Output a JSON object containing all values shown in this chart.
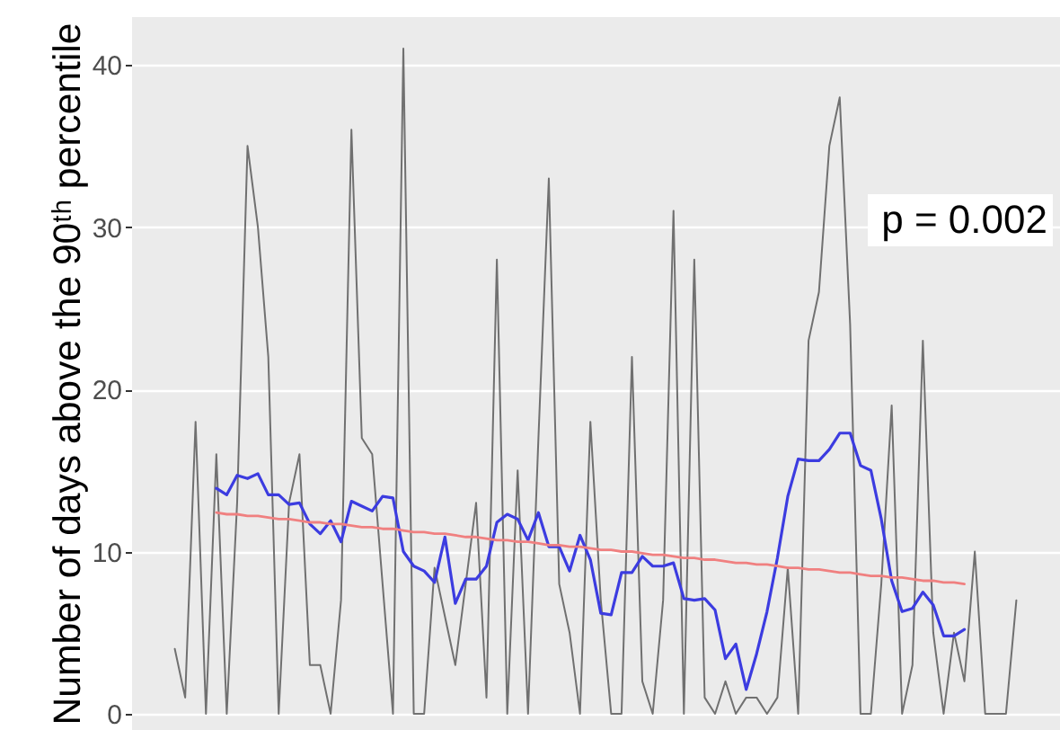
{
  "chart_data": {
    "type": "line",
    "ylabel": "Number of days above the 90ᵗʰ percentile",
    "categories": [
      null,
      null,
      null,
      null,
      null,
      null,
      null,
      null,
      null,
      null,
      null,
      null,
      null,
      null,
      null,
      null,
      null,
      null,
      null,
      null,
      null,
      null,
      null,
      null,
      null,
      null,
      null,
      null,
      null,
      null,
      null,
      null,
      null,
      null,
      null,
      null,
      null,
      null,
      null,
      null,
      null,
      null,
      null,
      null,
      null,
      null,
      null,
      null,
      null,
      null,
      null,
      null,
      null,
      null,
      null,
      null,
      null,
      null,
      null,
      null,
      null,
      null,
      null,
      null,
      null,
      null,
      null,
      null,
      null,
      null,
      null,
      null,
      null,
      null,
      null,
      null,
      null,
      null,
      null,
      null,
      null,
      null
    ],
    "series": [
      {
        "color": "#5a5a5a",
        "values": [
          4,
          1,
          18,
          0,
          16,
          0,
          13,
          35,
          30,
          22,
          0,
          13,
          16,
          3,
          3,
          0,
          7,
          36,
          17,
          16,
          8,
          0,
          41,
          0,
          0,
          9,
          6,
          3,
          8,
          13,
          1,
          28,
          0,
          15,
          0,
          17,
          33,
          8,
          5,
          0,
          18,
          7,
          0,
          0,
          22,
          2,
          0,
          7,
          31,
          0,
          28,
          1,
          0,
          2,
          0,
          1,
          1,
          0,
          1,
          9,
          0,
          23,
          26,
          35,
          38,
          24,
          0,
          0,
          8,
          19,
          0,
          3,
          23,
          5,
          0,
          5,
          2,
          10,
          0,
          0,
          0,
          7
        ]
      },
      {
        "color": "#3c3ce0",
        "values": [
          null,
          null,
          null,
          null,
          13.9,
          13.5,
          14.7,
          14.5,
          14.8,
          13.5,
          13.5,
          12.9,
          13.0,
          11.7,
          11.1,
          11.9,
          10.6,
          13.1,
          12.8,
          12.5,
          13.4,
          13.3,
          10.0,
          9.1,
          8.8,
          8.1,
          10.9,
          6.8,
          8.3,
          8.3,
          9.1,
          11.8,
          12.3,
          12.0,
          10.7,
          12.4,
          10.3,
          10.3,
          8.8,
          11.0,
          9.5,
          6.2,
          6.1,
          8.7,
          8.7,
          9.7,
          9.1,
          9.1,
          9.3,
          7.1,
          7.0,
          7.1,
          6.4,
          3.4,
          4.3,
          1.5,
          3.7,
          6.3,
          9.6,
          13.4,
          15.7,
          15.6,
          15.6,
          16.3,
          17.3,
          17.3,
          15.3,
          15.0,
          12.0,
          8.2,
          6.3,
          6.5,
          7.5,
          6.7,
          4.8,
          4.8,
          5.2,
          null,
          null,
          null,
          null,
          null
        ]
      },
      {
        "color": "#f08080",
        "type": "line",
        "values": [
          null,
          null,
          null,
          null,
          12.4,
          12.3,
          12.3,
          12.2,
          12.2,
          12.1,
          12.0,
          12.0,
          11.9,
          11.8,
          11.8,
          11.7,
          11.7,
          11.6,
          11.5,
          11.5,
          11.4,
          11.4,
          11.3,
          11.2,
          11.2,
          11.1,
          11.1,
          11.0,
          10.9,
          10.9,
          10.8,
          10.7,
          10.7,
          10.6,
          10.6,
          10.5,
          10.4,
          10.4,
          10.3,
          10.3,
          10.2,
          10.1,
          10.1,
          10.0,
          10.0,
          9.9,
          9.8,
          9.8,
          9.7,
          9.6,
          9.6,
          9.5,
          9.5,
          9.4,
          9.3,
          9.3,
          9.2,
          9.2,
          9.1,
          9.0,
          9.0,
          8.9,
          8.9,
          8.8,
          8.7,
          8.7,
          8.6,
          8.5,
          8.5,
          8.4,
          8.4,
          8.3,
          8.2,
          8.2,
          8.1,
          8.1,
          8.0,
          null,
          null,
          null,
          null,
          null
        ]
      }
    ],
    "ylim": [
      -1,
      43
    ],
    "yticks": [
      0,
      10,
      20,
      30,
      40
    ],
    "grid": "y",
    "tick_labels": "y",
    "annotations": [
      "p = 0.002"
    ]
  }
}
